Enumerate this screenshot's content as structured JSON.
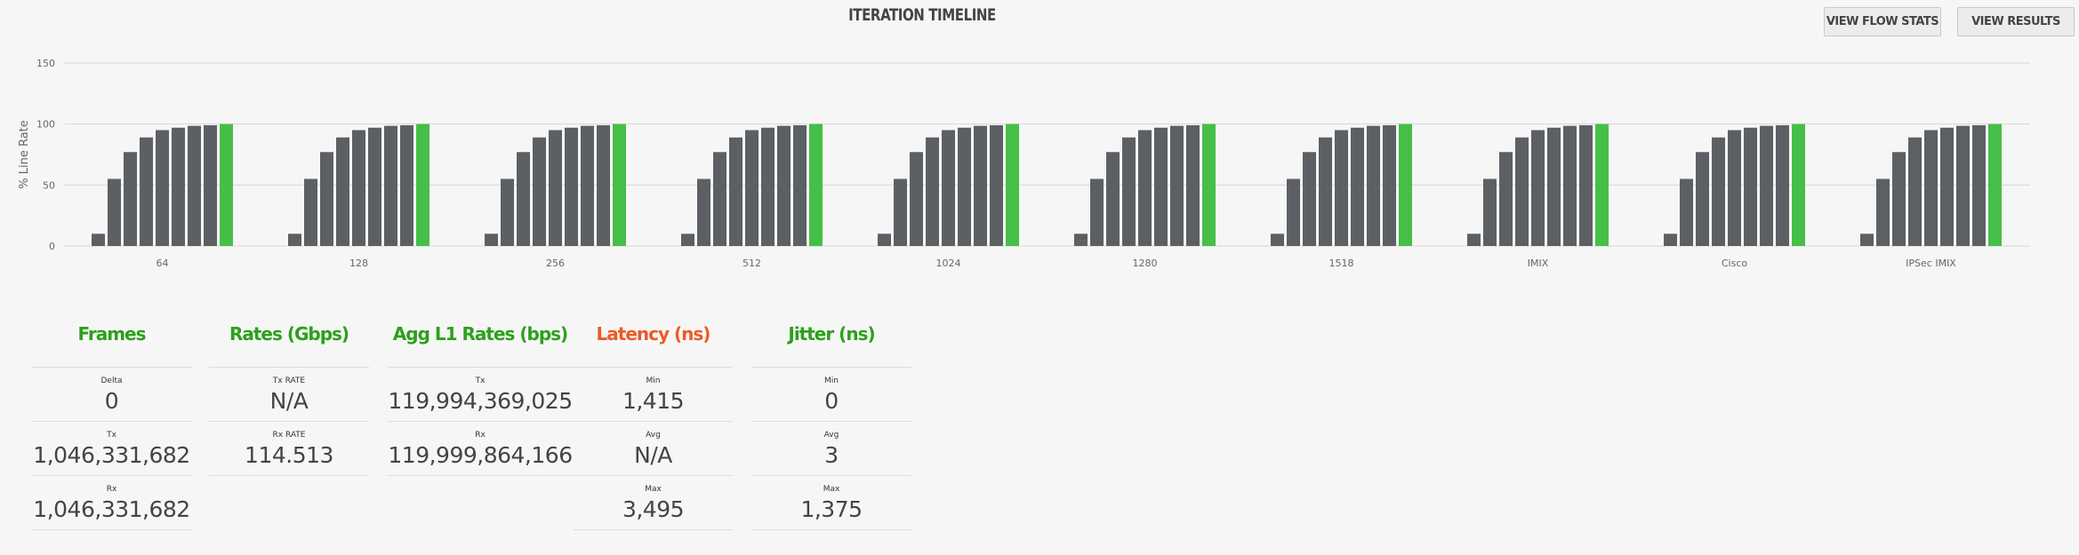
{
  "header": {
    "title": "ITERATION TIMELINE",
    "view_flow_stats": "VIEW FLOW STATS",
    "view_results": "VIEW RESULTS"
  },
  "chart_data": {
    "type": "bar",
    "title": "ITERATION TIMELINE",
    "ylabel": "% Line Rate",
    "xlabel": "",
    "ylim": [
      0,
      150
    ],
    "yticks": [
      0,
      50,
      100,
      150
    ],
    "grid": true,
    "categories": [
      "64",
      "128",
      "256",
      "512",
      "1024",
      "1280",
      "1518",
      "IMIX",
      "Cisco",
      "IPSec IMIX"
    ],
    "iteration_values": [
      10,
      55,
      77,
      89,
      95,
      97,
      98.5,
      99,
      100
    ],
    "final_iteration_highlight": true,
    "colors": {
      "iteration": "#5c6064",
      "final": "#45bf47",
      "grid": "#d6d6d6"
    }
  },
  "stats": {
    "frames": {
      "title": "Frames",
      "rows": [
        {
          "label": "Delta",
          "value": "0"
        },
        {
          "label": "Tx",
          "value": "1,046,331,682"
        },
        {
          "label": "Rx",
          "value": "1,046,331,682"
        }
      ]
    },
    "rates": {
      "title": "Rates (Gbps)",
      "rows": [
        {
          "label": "Tx RATE",
          "value": "N/A"
        },
        {
          "label": "Rx RATE",
          "value": "114.513"
        }
      ]
    },
    "agg": {
      "title": "Agg L1 Rates (bps)",
      "rows": [
        {
          "label": "Tx",
          "value": "119,994,369,025"
        },
        {
          "label": "Rx",
          "value": "119,999,864,166"
        }
      ]
    },
    "latency": {
      "title": "Latency (ns)",
      "rows": [
        {
          "label": "Min",
          "value": "1,415"
        },
        {
          "label": "Avg",
          "value": "N/A"
        },
        {
          "label": "Max",
          "value": "3,495"
        }
      ]
    },
    "jitter": {
      "title": "Jitter (ns)",
      "rows": [
        {
          "label": "Min",
          "value": "0"
        },
        {
          "label": "Avg",
          "value": "3"
        },
        {
          "label": "Max",
          "value": "1,375"
        }
      ]
    }
  }
}
